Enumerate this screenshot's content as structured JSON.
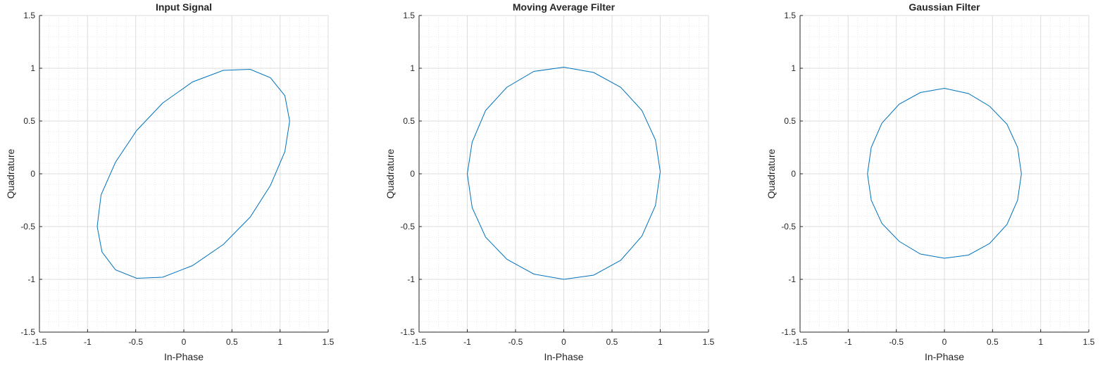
{
  "chart_data": [
    {
      "type": "line",
      "title": "Input Signal",
      "xlabel": "In-Phase",
      "ylabel": "Quadrature",
      "xlim": [
        -1.5,
        1.5
      ],
      "ylim": [
        -1.5,
        1.5
      ],
      "xticks": [
        "-1.5",
        "-1",
        "-0.5",
        "0",
        "0.5",
        "1",
        "1.5"
      ],
      "yticks": [
        "-1.5",
        "-1",
        "-0.5",
        "0",
        "0.5",
        "1",
        "1.5"
      ],
      "grid": true,
      "minor_grid": true,
      "line_color": "#0072BD",
      "x": [
        1.1,
        1.05,
        0.9,
        0.69,
        0.41,
        0.09,
        -0.22,
        -0.49,
        -0.71,
        -0.86,
        -0.9,
        -0.85,
        -0.71,
        -0.49,
        -0.22,
        0.09,
        0.41,
        0.69,
        0.9,
        1.05,
        1.1
      ],
      "y": [
        0.5,
        0.74,
        0.91,
        0.99,
        0.98,
        0.87,
        0.67,
        0.41,
        0.11,
        -0.2,
        -0.5,
        -0.74,
        -0.91,
        -0.99,
        -0.98,
        -0.87,
        -0.67,
        -0.41,
        -0.11,
        0.21,
        0.5
      ]
    },
    {
      "type": "line",
      "title": "Moving Average Filter",
      "xlabel": "In-Phase",
      "ylabel": "Quadrature",
      "xlim": [
        -1.5,
        1.5
      ],
      "ylim": [
        -1.5,
        1.5
      ],
      "xticks": [
        "-1.5",
        "-1",
        "-0.5",
        "0",
        "0.5",
        "1",
        "1.5"
      ],
      "yticks": [
        "-1.5",
        "-1",
        "-0.5",
        "0",
        "0.5",
        "1",
        "1.5"
      ],
      "grid": true,
      "minor_grid": true,
      "line_color": "#0072BD",
      "x": [
        1.0,
        0.95,
        0.81,
        0.59,
        0.31,
        0.0,
        -0.31,
        -0.59,
        -0.81,
        -0.95,
        -1.0,
        -0.95,
        -0.81,
        -0.59,
        -0.31,
        0.0,
        0.31,
        0.59,
        0.81,
        0.95,
        1.0
      ],
      "y": [
        0.02,
        0.32,
        0.6,
        0.82,
        0.96,
        1.01,
        0.97,
        0.82,
        0.6,
        0.3,
        0.0,
        -0.32,
        -0.6,
        -0.81,
        -0.95,
        -1.0,
        -0.96,
        -0.82,
        -0.59,
        -0.3,
        0.02
      ]
    },
    {
      "type": "line",
      "title": "Gaussian Filter",
      "xlabel": "In-Phase",
      "ylabel": "Quadrature",
      "xlim": [
        -1.5,
        1.5
      ],
      "ylim": [
        -1.5,
        1.5
      ],
      "xticks": [
        "-1.5",
        "-1",
        "-0.5",
        "0",
        "0.5",
        "1",
        "1.5"
      ],
      "yticks": [
        "-1.5",
        "-1",
        "-0.5",
        "0",
        "0.5",
        "1",
        "1.5"
      ],
      "grid": true,
      "minor_grid": true,
      "line_color": "#0072BD",
      "x": [
        0.8,
        0.76,
        0.65,
        0.47,
        0.25,
        0.0,
        -0.25,
        -0.47,
        -0.65,
        -0.76,
        -0.8,
        -0.76,
        -0.65,
        -0.47,
        -0.25,
        0.0,
        0.25,
        0.47,
        0.65,
        0.76,
        0.8
      ],
      "y": [
        0.0,
        0.25,
        0.47,
        0.64,
        0.76,
        0.81,
        0.77,
        0.66,
        0.48,
        0.25,
        0.0,
        -0.25,
        -0.47,
        -0.64,
        -0.76,
        -0.8,
        -0.77,
        -0.66,
        -0.48,
        -0.25,
        0.0
      ]
    }
  ]
}
